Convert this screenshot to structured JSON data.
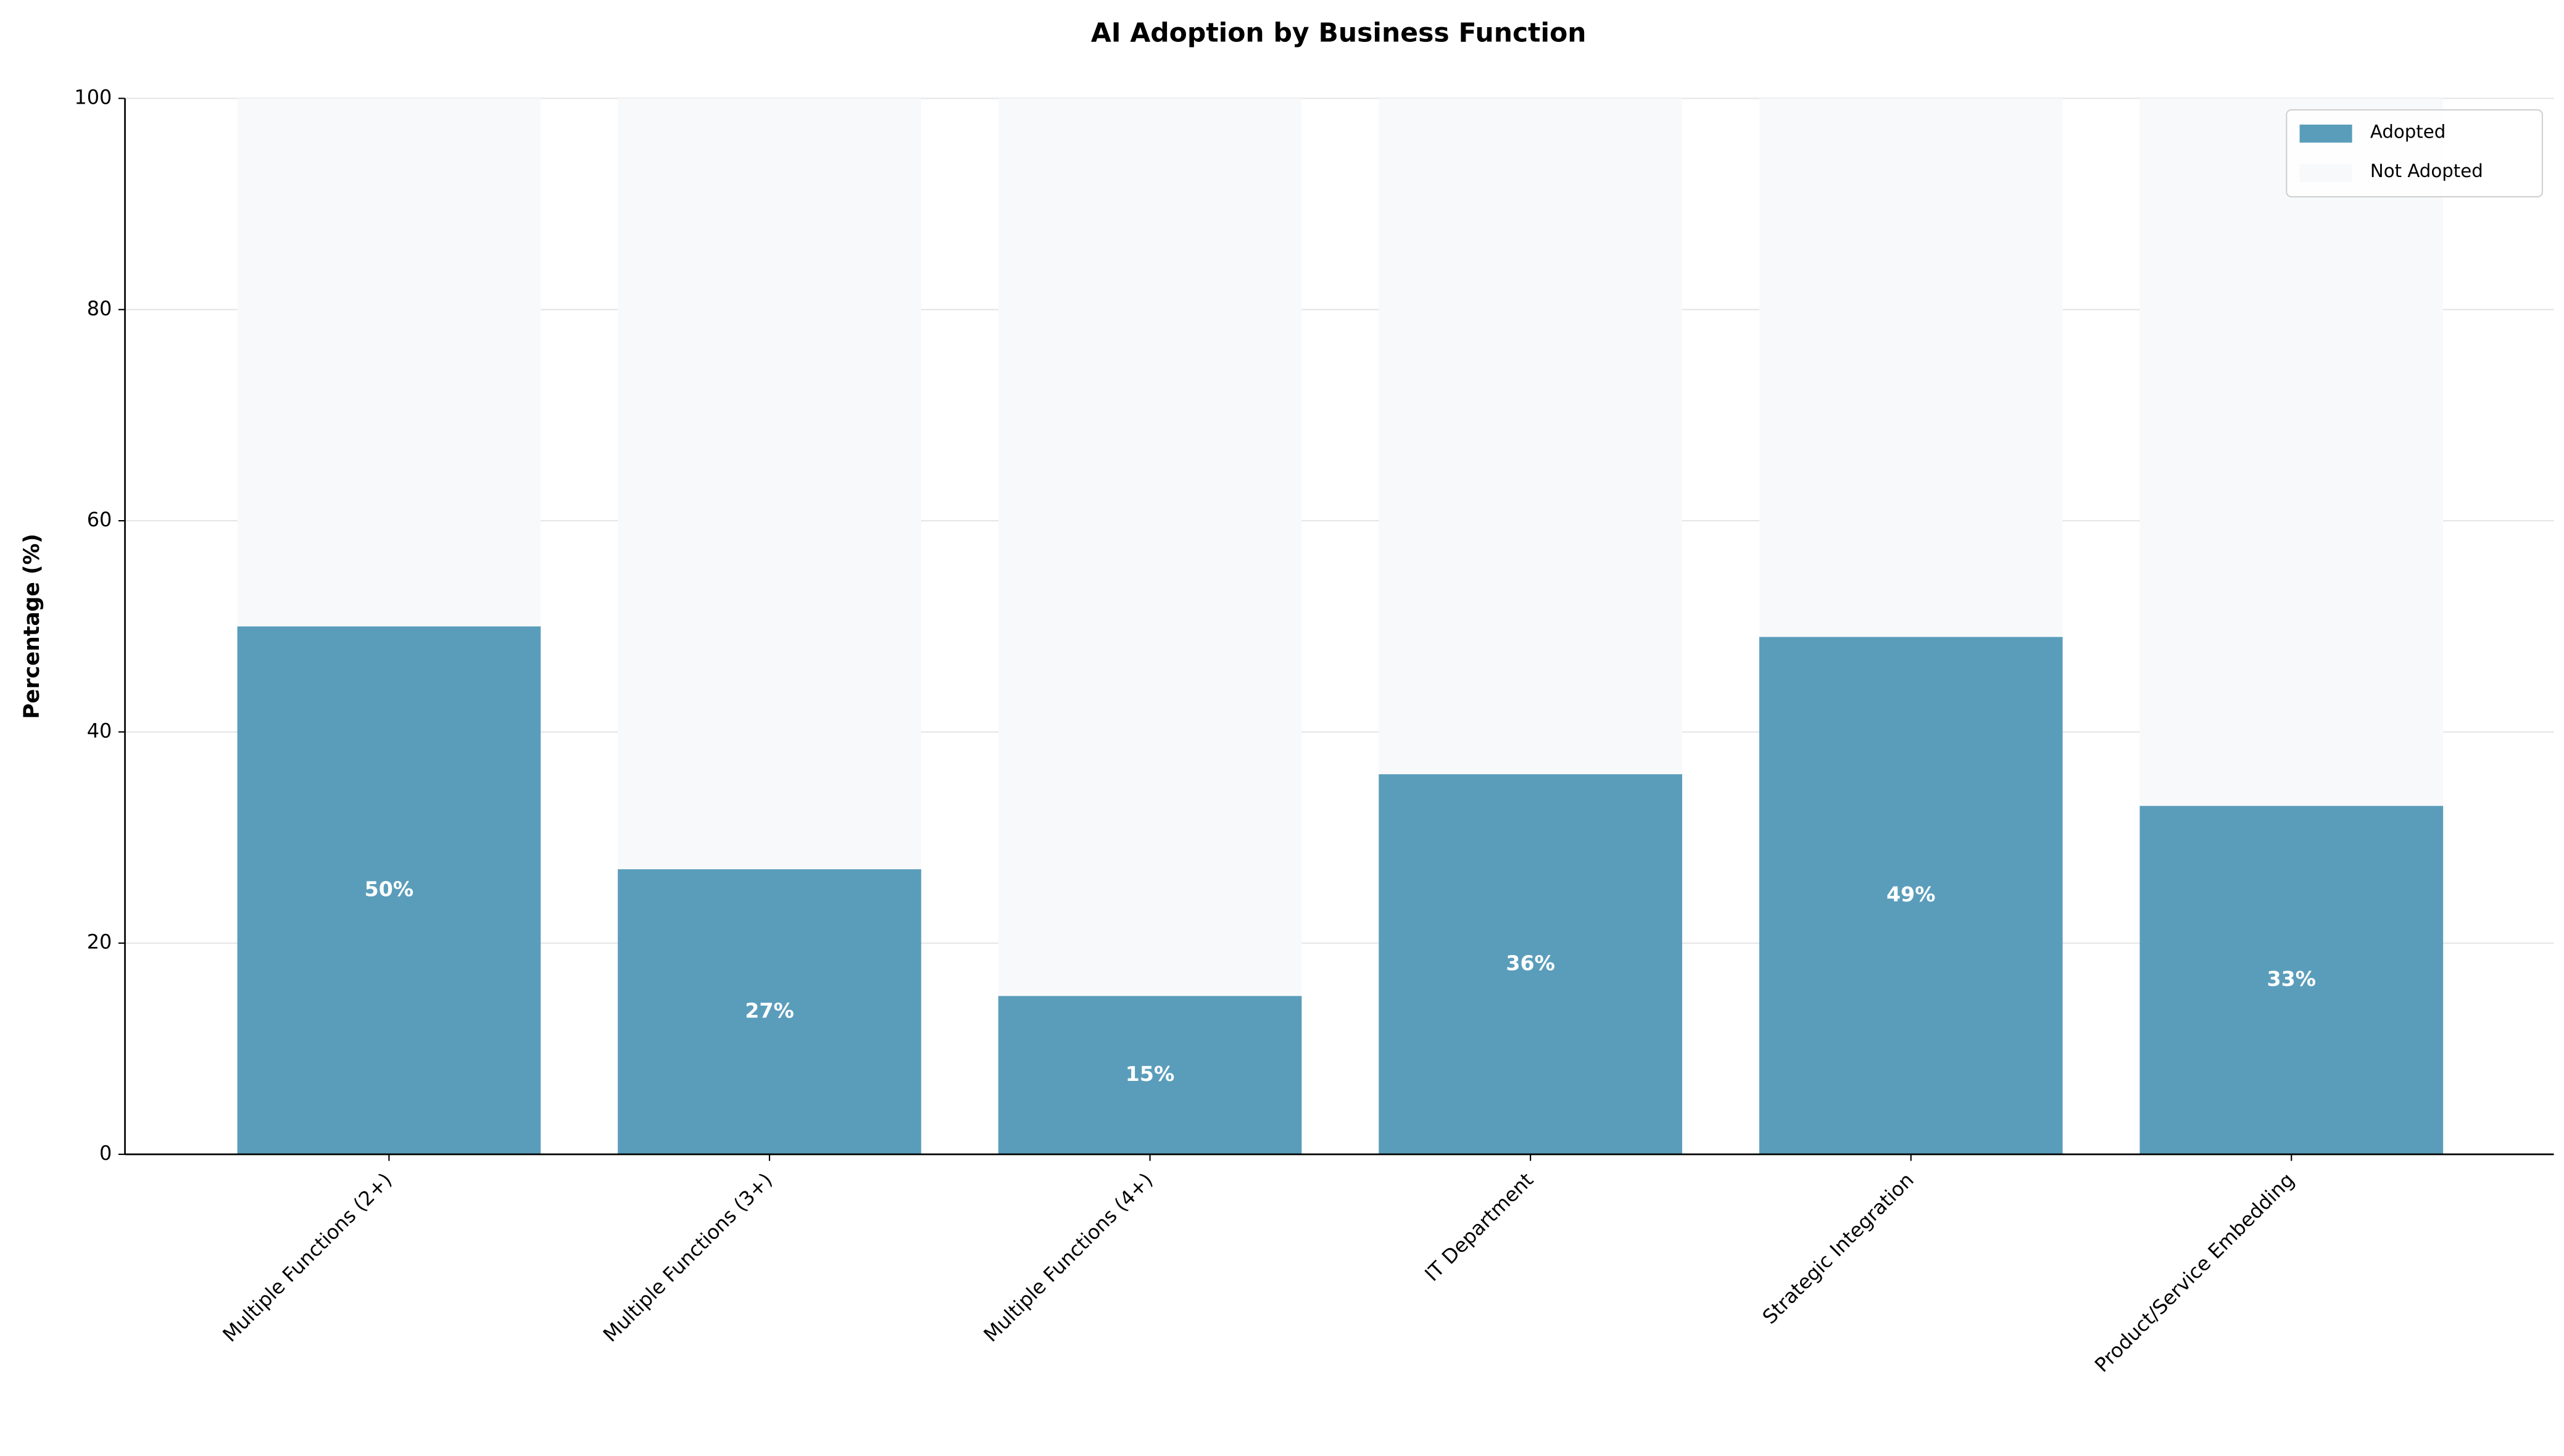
{
  "chart_data": {
    "type": "stacked_bar",
    "title": "AI Adoption by Business Function",
    "y_label": "Percentage (%)",
    "categories": [
      "Multiple Functions (2+)",
      "Multiple Functions (3+)",
      "Multiple Functions (4+)",
      "IT Department",
      "Strategic Integration",
      "Product/Service Embedding"
    ],
    "series": [
      {
        "name": "Adopted",
        "color": "#5a9dbb",
        "values": [
          50,
          27,
          15,
          36,
          49,
          33
        ],
        "value_labels": [
          "50%",
          "27%",
          "15%",
          "36%",
          "49%",
          "33%"
        ]
      },
      {
        "name": "Not Adopted",
        "color": "#f7f9fb",
        "values": [
          50,
          73,
          85,
          64,
          51,
          67
        ]
      }
    ],
    "ylim": [
      0,
      100
    ],
    "yticks": [
      0,
      20,
      40,
      60,
      80,
      100
    ],
    "grid": true,
    "legend": "upper right"
  }
}
